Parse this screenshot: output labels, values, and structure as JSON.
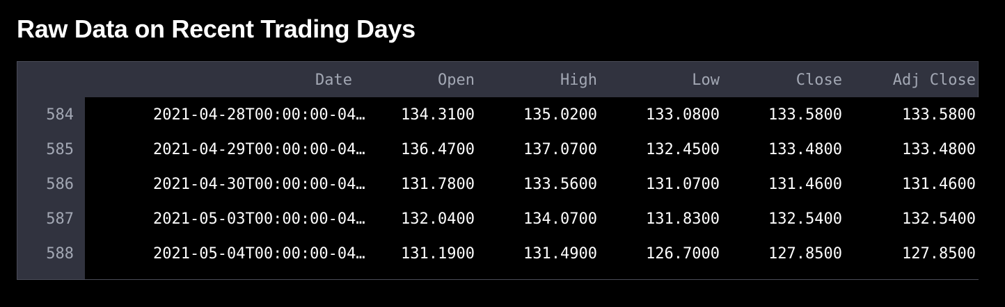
{
  "title": "Raw Data on Recent Trading Days",
  "table": {
    "columns": [
      "Date",
      "Open",
      "High",
      "Low",
      "Close",
      "Adj Close"
    ],
    "rows": [
      {
        "index": "584",
        "date": "2021-04-28T00:00:00-04…",
        "open": "134.3100",
        "high": "135.0200",
        "low": "133.0800",
        "close": "133.5800",
        "adj_close": "133.5800"
      },
      {
        "index": "585",
        "date": "2021-04-29T00:00:00-04…",
        "open": "136.4700",
        "high": "137.0700",
        "low": "132.4500",
        "close": "133.4800",
        "adj_close": "133.4800"
      },
      {
        "index": "586",
        "date": "2021-04-30T00:00:00-04…",
        "open": "131.7800",
        "high": "133.5600",
        "low": "131.0700",
        "close": "131.4600",
        "adj_close": "131.4600"
      },
      {
        "index": "587",
        "date": "2021-05-03T00:00:00-04…",
        "open": "132.0400",
        "high": "134.0700",
        "low": "131.8300",
        "close": "132.5400",
        "adj_close": "132.5400"
      },
      {
        "index": "588",
        "date": "2021-05-04T00:00:00-04…",
        "open": "131.1900",
        "high": "131.4900",
        "low": "126.7000",
        "close": "127.8500",
        "adj_close": "127.8500"
      }
    ]
  },
  "colors": {
    "background": "#000000",
    "header_background": "#31333f",
    "header_text": "#a3a8b4",
    "cell_text": "#ffffff"
  }
}
